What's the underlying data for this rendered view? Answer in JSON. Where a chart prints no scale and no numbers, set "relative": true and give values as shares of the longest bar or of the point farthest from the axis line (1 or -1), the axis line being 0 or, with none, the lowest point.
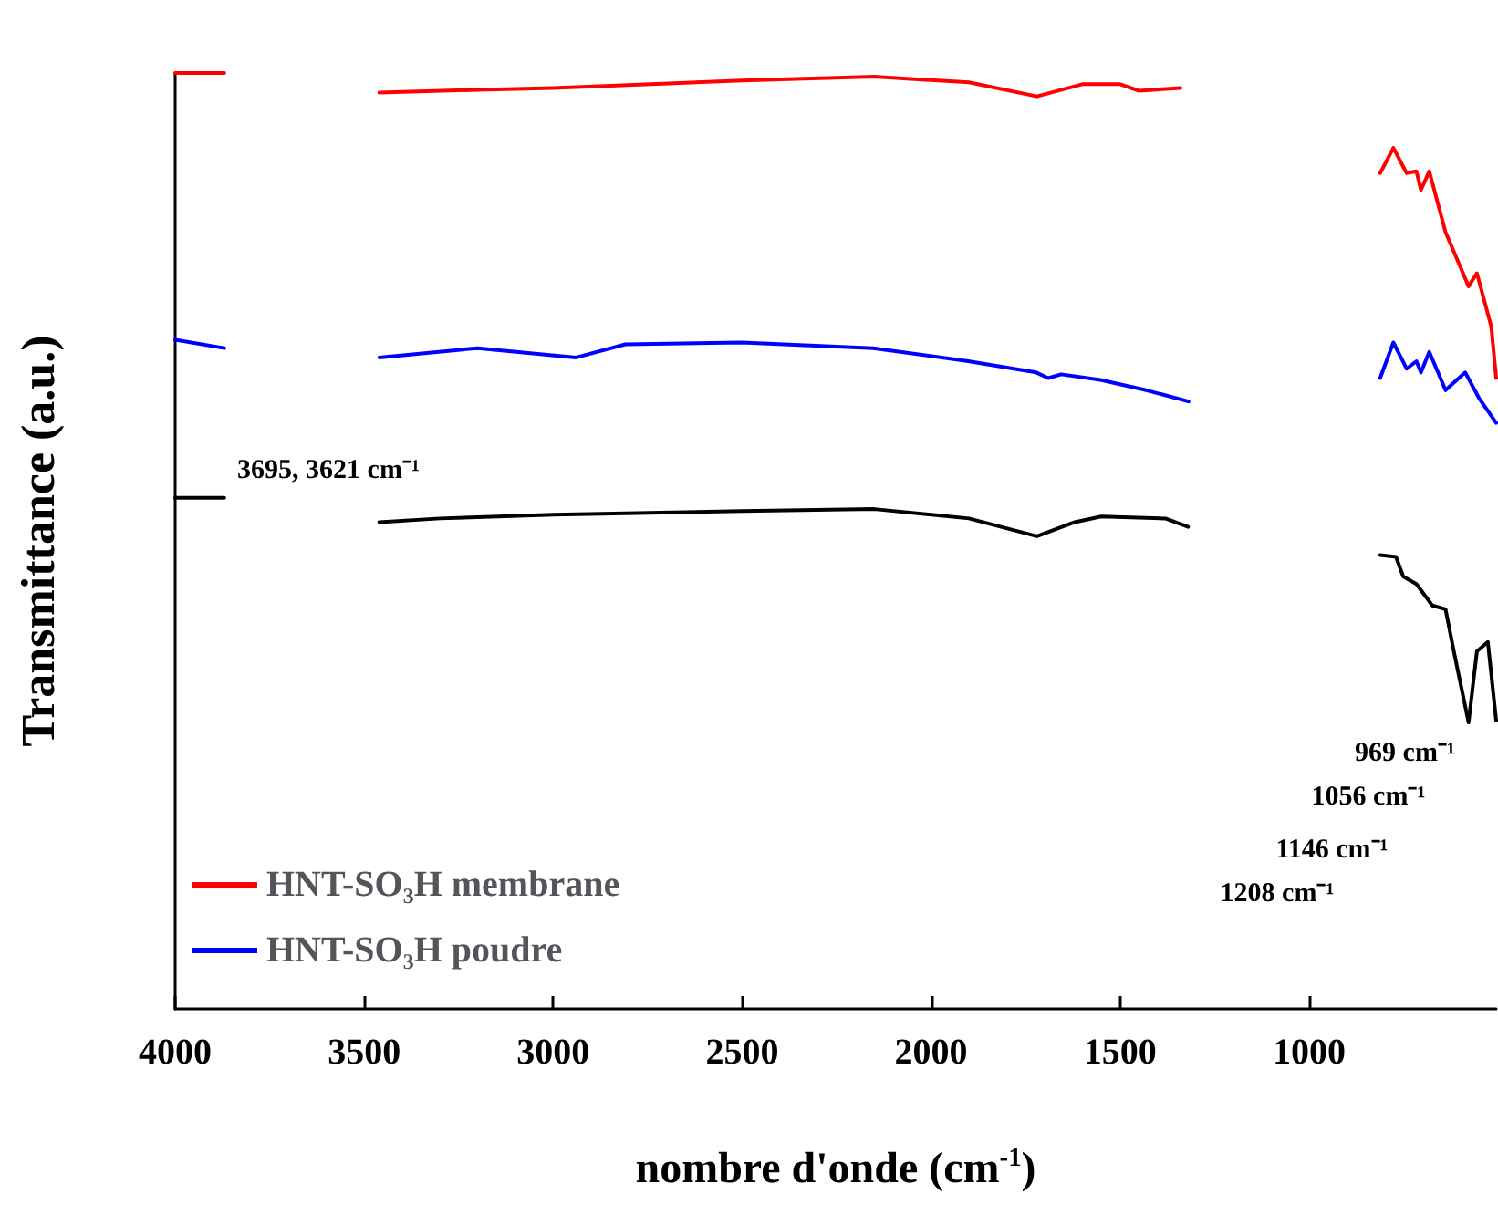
{
  "chart_data": {
    "type": "line",
    "relative": true,
    "xlabel": "nombre d'onde (cm$^{-1}$)",
    "ylabel": "Transmittance (a.u.)",
    "xlim": [
      4000,
      505
    ],
    "xticks": [
      4000,
      3500,
      3000,
      2500,
      2000,
      1500,
      1000
    ],
    "grid": false,
    "legend": "bottom left",
    "marker": "none",
    "line_style": "solid",
    "annotations": [
      "3695, 3621 cm⁻¹",
      "969 cm⁻¹",
      "1056 cm⁻¹",
      "1146 cm⁻¹",
      "1208 cm⁻¹"
    ],
    "series": [
      {
        "color": "#000000",
        "x": [
          4000,
          3870,
          3660,
          3460,
          3300,
          3000,
          2500,
          2150,
          1900,
          1720,
          1620,
          1550,
          1380,
          1320,
          1060,
          812,
          770,
          751,
          716,
          674,
          639,
          617,
          578,
          556,
          527,
          505
        ],
        "values": [
          0.546,
          0.546,
          null,
          0.52,
          0.524,
          0.528,
          0.532,
          0.534,
          0.524,
          0.505,
          0.52,
          0.526,
          0.524,
          0.515,
          null,
          0.485,
          0.483,
          0.462,
          0.454,
          0.431,
          0.427,
          0.382,
          0.306,
          0.382,
          0.392,
          0.308
        ]
      },
      {
        "name": "HNT-SO₃H membrane",
        "color": "#ff0000",
        "x": [
          4000,
          3870,
          3660,
          3460,
          3200,
          3000,
          2500,
          2150,
          1900,
          1720,
          1600,
          1500,
          1450,
          1340,
          1060,
          812,
          777,
          742,
          716,
          704,
          682,
          639,
          578,
          556,
          518,
          505
        ],
        "values": [
          1.0,
          1.0,
          null,
          0.979,
          0.982,
          0.984,
          0.992,
          0.996,
          0.99,
          0.975,
          0.988,
          0.988,
          0.981,
          0.984,
          null,
          0.893,
          0.92,
          0.893,
          0.895,
          0.875,
          0.895,
          0.83,
          0.772,
          0.786,
          0.729,
          0.674
        ]
      },
      {
        "name": "HNT-SO₃H poudre",
        "color": "#0000ff",
        "x": [
          4000,
          3870,
          3660,
          3460,
          3200,
          2939,
          2809,
          2500,
          2153,
          1902,
          1722,
          1690,
          1656,
          1552,
          1431,
          1319,
          1060,
          812,
          777,
          742,
          716,
          704,
          682,
          639,
          587,
          551,
          505
        ],
        "values": [
          0.715,
          0.706,
          null,
          0.696,
          0.706,
          0.696,
          0.71,
          0.712,
          0.706,
          0.692,
          0.68,
          0.674,
          0.678,
          0.672,
          0.661,
          0.649,
          null,
          0.674,
          0.712,
          0.684,
          0.692,
          0.68,
          0.702,
          0.661,
          0.68,
          0.653,
          0.626
        ]
      }
    ]
  }
}
